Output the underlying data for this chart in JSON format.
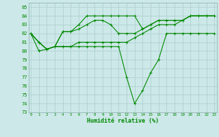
{
  "xlabel": "Humidité relative (%)",
  "bg_color": "#cce8e8",
  "grid_color": "#aacccc",
  "line_color": "#008800",
  "ylim": [
    73,
    85.5
  ],
  "xlim": [
    -0.3,
    23.3
  ],
  "yticks": [
    73,
    74,
    75,
    76,
    77,
    78,
    79,
    80,
    81,
    82,
    83,
    84,
    85
  ],
  "xticks": [
    0,
    1,
    2,
    3,
    4,
    5,
    6,
    7,
    8,
    9,
    10,
    11,
    12,
    13,
    14,
    15,
    16,
    17,
    18,
    19,
    20,
    21,
    22,
    23
  ],
  "series": [
    [
      82,
      81,
      80.2,
      80.5,
      82.2,
      82.2,
      83,
      84,
      84,
      84,
      84,
      84,
      84,
      84,
      82.5,
      83,
      83.5,
      83.5,
      83.5,
      83.5,
      84,
      84,
      84,
      84
    ],
    [
      82,
      81,
      80.2,
      80.5,
      82.2,
      82.2,
      82.5,
      83,
      83.5,
      83.5,
      83,
      82,
      82,
      82,
      82.5,
      83,
      83.5,
      83.5,
      83.5,
      83.5,
      84,
      84,
      84,
      84
    ],
    [
      82,
      81,
      80.2,
      80.5,
      80.5,
      80.5,
      81,
      81,
      81,
      81,
      81,
      81,
      81,
      81.5,
      82,
      82.5,
      83,
      83,
      83,
      83.5,
      84,
      84,
      84,
      84
    ],
    [
      82,
      80,
      80.2,
      80.5,
      80.5,
      80.5,
      80.5,
      80.5,
      80.5,
      80.5,
      80.5,
      80.5,
      77,
      74,
      75.5,
      77.5,
      79,
      82,
      82,
      82,
      82,
      82,
      82,
      82
    ]
  ]
}
